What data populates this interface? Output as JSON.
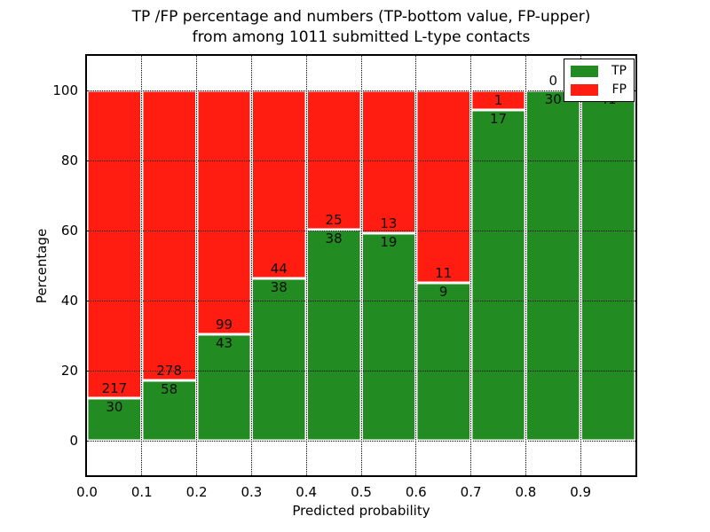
{
  "chart_data": {
    "type": "bar",
    "variant": "stacked-percentage-histogram",
    "title_line1": "TP /FP percentage and numbers (TP-bottom value, FP-upper)",
    "title_line2": "from among 1011 submitted L-type contacts",
    "xlabel": "Predicted probability",
    "ylabel": "Percentage",
    "total_contacts": 1011,
    "xlim": [
      0.0,
      1.0
    ],
    "ylim": [
      -10,
      110
    ],
    "grid": "dotted, both axes",
    "legend_position": "upper right, inside axes",
    "x_tick_labels": [
      "0.0",
      "0.1",
      "0.2",
      "0.3",
      "0.4",
      "0.5",
      "0.6",
      "0.7",
      "0.8",
      "0.9"
    ],
    "x_tick_values": [
      0.0,
      0.1,
      0.2,
      0.3,
      0.4,
      0.5,
      0.6,
      0.7,
      0.8,
      0.9
    ],
    "y_tick_values": [
      0,
      20,
      40,
      60,
      80,
      100
    ],
    "bin_width": 0.1,
    "series": [
      {
        "name": "TP",
        "color": "#228b22",
        "position": "bottom"
      },
      {
        "name": "FP",
        "color": "#ff1d12",
        "position": "top"
      }
    ],
    "bars": [
      {
        "bin_start": 0.0,
        "bin_end": 0.1,
        "tp": 30,
        "fp": 217
      },
      {
        "bin_start": 0.1,
        "bin_end": 0.2,
        "tp": 58,
        "fp": 278
      },
      {
        "bin_start": 0.2,
        "bin_end": 0.3,
        "tp": 43,
        "fp": 99
      },
      {
        "bin_start": 0.3,
        "bin_end": 0.4,
        "tp": 38,
        "fp": 44
      },
      {
        "bin_start": 0.4,
        "bin_end": 0.5,
        "tp": 38,
        "fp": 25
      },
      {
        "bin_start": 0.5,
        "bin_end": 0.6,
        "tp": 19,
        "fp": 13
      },
      {
        "bin_start": 0.6,
        "bin_end": 0.7,
        "tp": 9,
        "fp": 11
      },
      {
        "bin_start": 0.7,
        "bin_end": 0.8,
        "tp": 17,
        "fp": 1
      },
      {
        "bin_start": 0.8,
        "bin_end": 0.9,
        "tp": 30,
        "fp": 0
      },
      {
        "bin_start": 0.9,
        "bin_end": 1.0,
        "tp": 41,
        "fp": 0
      }
    ],
    "bar_edge_color": "#ffffff",
    "note": "bars are normalized to 100%; labels show raw counts (TP below boundary, FP above)"
  },
  "legend": {
    "items": [
      {
        "label": "TP",
        "color": "#228b22"
      },
      {
        "label": "FP",
        "color": "#ff1d12"
      }
    ]
  }
}
